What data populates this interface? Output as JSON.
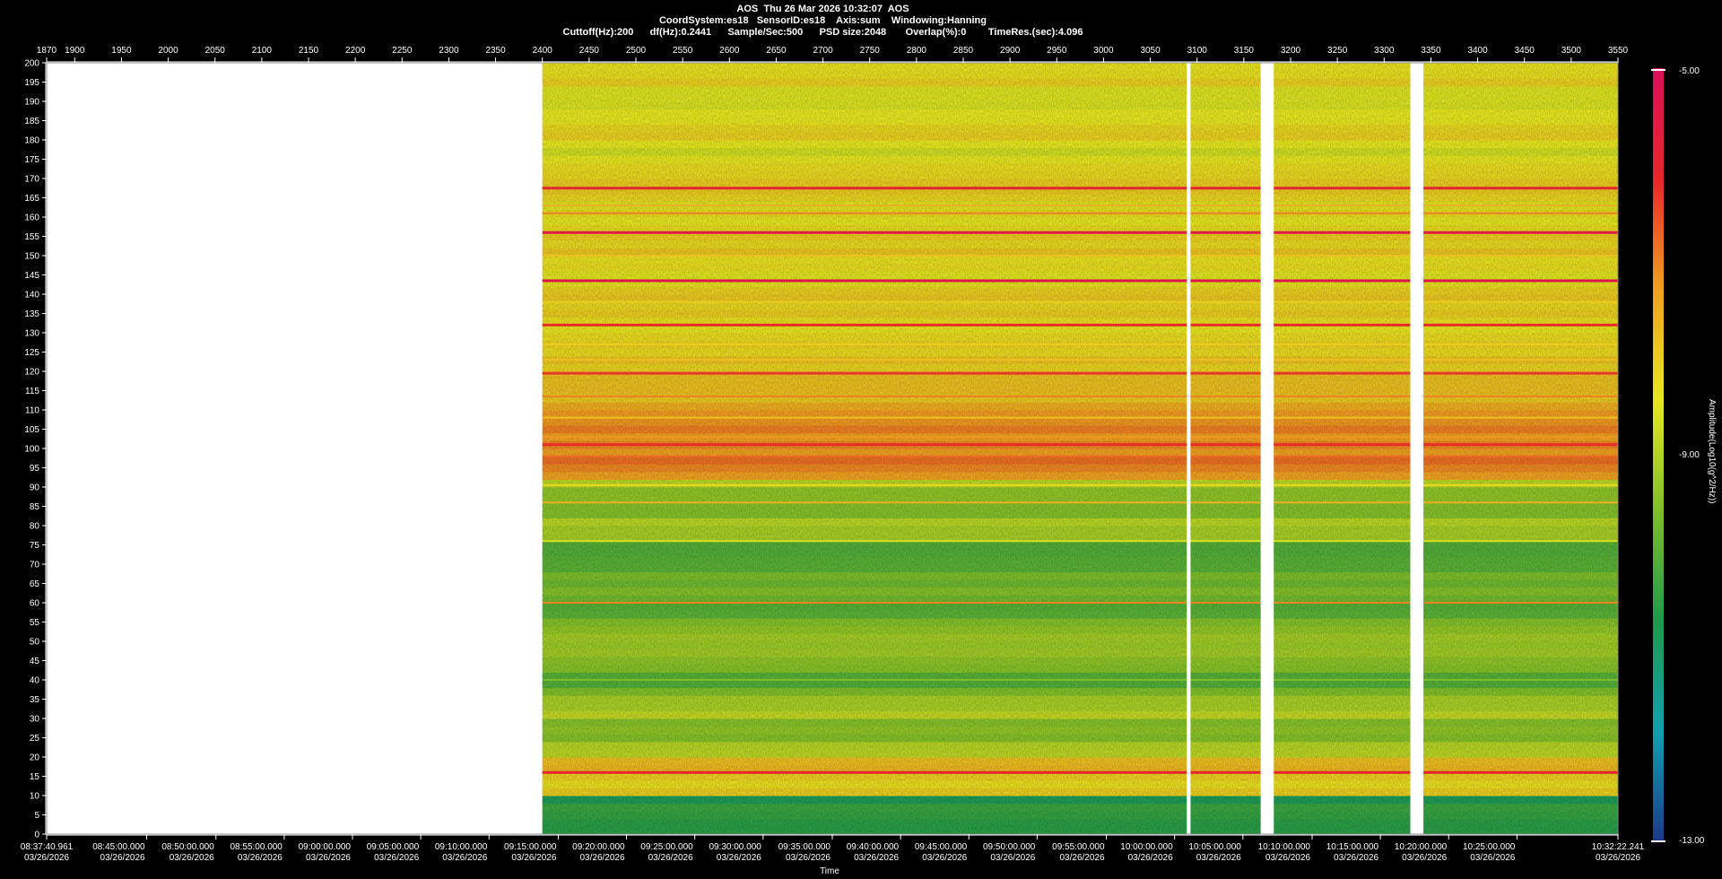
{
  "header": {
    "line1": "AOS  Thu 26 Mar 2026 10:32:07  AOS",
    "line2": "CoordSystem:es18   SensorID:es18    Axis:sum    Windowing:Hanning",
    "line3": "Cuttoff(Hz):200      df(Hz):0.2441      Sample/Sec:500      PSD size:2048       Overlap(%):0        TimeRes.(sec):4.096"
  },
  "colors": {
    "background": "#000000",
    "no_data": "#ffffff",
    "scale": [
      "#1a3a8a",
      "#12a0b0",
      "#1f9a4a",
      "#7fbf2a",
      "#e8e820",
      "#f0a020",
      "#e8262a",
      "#d8105a"
    ]
  },
  "chart_data": {
    "type": "heatmap",
    "title": "AOS  Thu 26 Mar 2026 10:32:07  AOS",
    "xlabel": "Time",
    "ylabel": "",
    "colorbar_label": "Amplitude(Log10(g^2/Hz))",
    "colorbar_range": [
      -13.0,
      -5.0
    ],
    "colorbar_ticks": [
      "-5.00",
      "-9.00",
      "-13.00"
    ],
    "top_axis": {
      "range": [
        1870,
        3550
      ],
      "ticks": [
        "1870",
        "1900",
        "1950",
        "2000",
        "2050",
        "2100",
        "2150",
        "2200",
        "2250",
        "2300",
        "2350",
        "2400",
        "2450",
        "2500",
        "2550",
        "2600",
        "2650",
        "2700",
        "2750",
        "2800",
        "2850",
        "2900",
        "2950",
        "3000",
        "3050",
        "3100",
        "3150",
        "3200",
        "3250",
        "3300",
        "3350",
        "3400",
        "3450",
        "3500",
        "3550"
      ]
    },
    "y_axis": {
      "range": [
        0,
        200
      ],
      "ticks": [
        "0",
        "5",
        "10",
        "15",
        "20",
        "25",
        "30",
        "35",
        "40",
        "45",
        "50",
        "55",
        "60",
        "65",
        "70",
        "75",
        "80",
        "85",
        "90",
        "95",
        "100",
        "105",
        "110",
        "115",
        "120",
        "125",
        "130",
        "135",
        "140",
        "145",
        "150",
        "155",
        "160",
        "165",
        "170",
        "175",
        "180",
        "185",
        "190",
        "195",
        "200"
      ]
    },
    "bottom_axis": {
      "ticks": [
        {
          "time": "08:37:40.961",
          "date": "03/26/2026",
          "x": 1870
        },
        {
          "time": "08:45:00.000",
          "date": "03/26/2026",
          "x": 1977
        },
        {
          "time": "08:50:00.000",
          "date": "03/26/2026",
          "x": 2051
        },
        {
          "time": "08:55:00.000",
          "date": "03/26/2026",
          "x": 2124
        },
        {
          "time": "09:00:00.000",
          "date": "03/26/2026",
          "x": 2197
        },
        {
          "time": "09:05:00.000",
          "date": "03/26/2026",
          "x": 2270
        },
        {
          "time": "09:10:00.000",
          "date": "03/26/2026",
          "x": 2343
        },
        {
          "time": "09:15:00.000",
          "date": "03/26/2026",
          "x": 2417
        },
        {
          "time": "09:20:00.000",
          "date": "03/26/2026",
          "x": 2490
        },
        {
          "time": "09:25:00.000",
          "date": "03/26/2026",
          "x": 2563
        },
        {
          "time": "09:30:00.000",
          "date": "03/26/2026",
          "x": 2636
        },
        {
          "time": "09:35:00.000",
          "date": "03/26/2026",
          "x": 2710
        },
        {
          "time": "09:40:00.000",
          "date": "03/26/2026",
          "x": 2783
        },
        {
          "time": "09:45:00.000",
          "date": "03/26/2026",
          "x": 2856
        },
        {
          "time": "09:50:00.000",
          "date": "03/26/2026",
          "x": 2929
        },
        {
          "time": "09:55:00.000",
          "date": "03/26/2026",
          "x": 3003
        },
        {
          "time": "10:00:00.000",
          "date": "03/26/2026",
          "x": 3076
        },
        {
          "time": "10:05:00.000",
          "date": "03/26/2026",
          "x": 3149
        },
        {
          "time": "10:10:00.000",
          "date": "03/26/2026",
          "x": 3223
        },
        {
          "time": "10:15:00.000",
          "date": "03/26/2026",
          "x": 3296
        },
        {
          "time": "10:20:00.000",
          "date": "03/26/2026",
          "x": 3369
        },
        {
          "time": "10:25:00.000",
          "date": "03/26/2026",
          "x": 3442
        },
        {
          "time": "10:32:22.241",
          "date": "03/26/2026",
          "x": 3550
        }
      ]
    },
    "data_start_x": 2400,
    "gaps_x": [
      [
        3089,
        3093
      ],
      [
        3168,
        3182
      ],
      [
        3328,
        3342
      ]
    ],
    "bands": [
      {
        "f": 167.5,
        "level": -6.0
      },
      {
        "f": 163,
        "level": -7.5
      },
      {
        "f": 161,
        "level": -7.0
      },
      {
        "f": 156,
        "level": -5.5
      },
      {
        "f": 150,
        "level": -7.8
      },
      {
        "f": 143.5,
        "level": -5.3
      },
      {
        "f": 138,
        "level": -8.0
      },
      {
        "f": 132,
        "level": -6.2
      },
      {
        "f": 127,
        "level": -8.0
      },
      {
        "f": 123,
        "level": -7.8
      },
      {
        "f": 119.5,
        "level": -6.3
      },
      {
        "f": 113.5,
        "level": -7.0
      },
      {
        "f": 108,
        "level": -7.8
      },
      {
        "f": 103,
        "level": -7.2
      },
      {
        "f": 101,
        "level": -6.2
      },
      {
        "f": 98,
        "level": -6.8
      },
      {
        "f": 90.5,
        "level": -8.2
      },
      {
        "f": 86,
        "level": -7.5
      },
      {
        "f": 76,
        "level": -8.6
      },
      {
        "f": 60,
        "level": -7.0
      },
      {
        "f": 40,
        "level": -9.6
      },
      {
        "f": 16,
        "level": -6.0
      }
    ]
  }
}
